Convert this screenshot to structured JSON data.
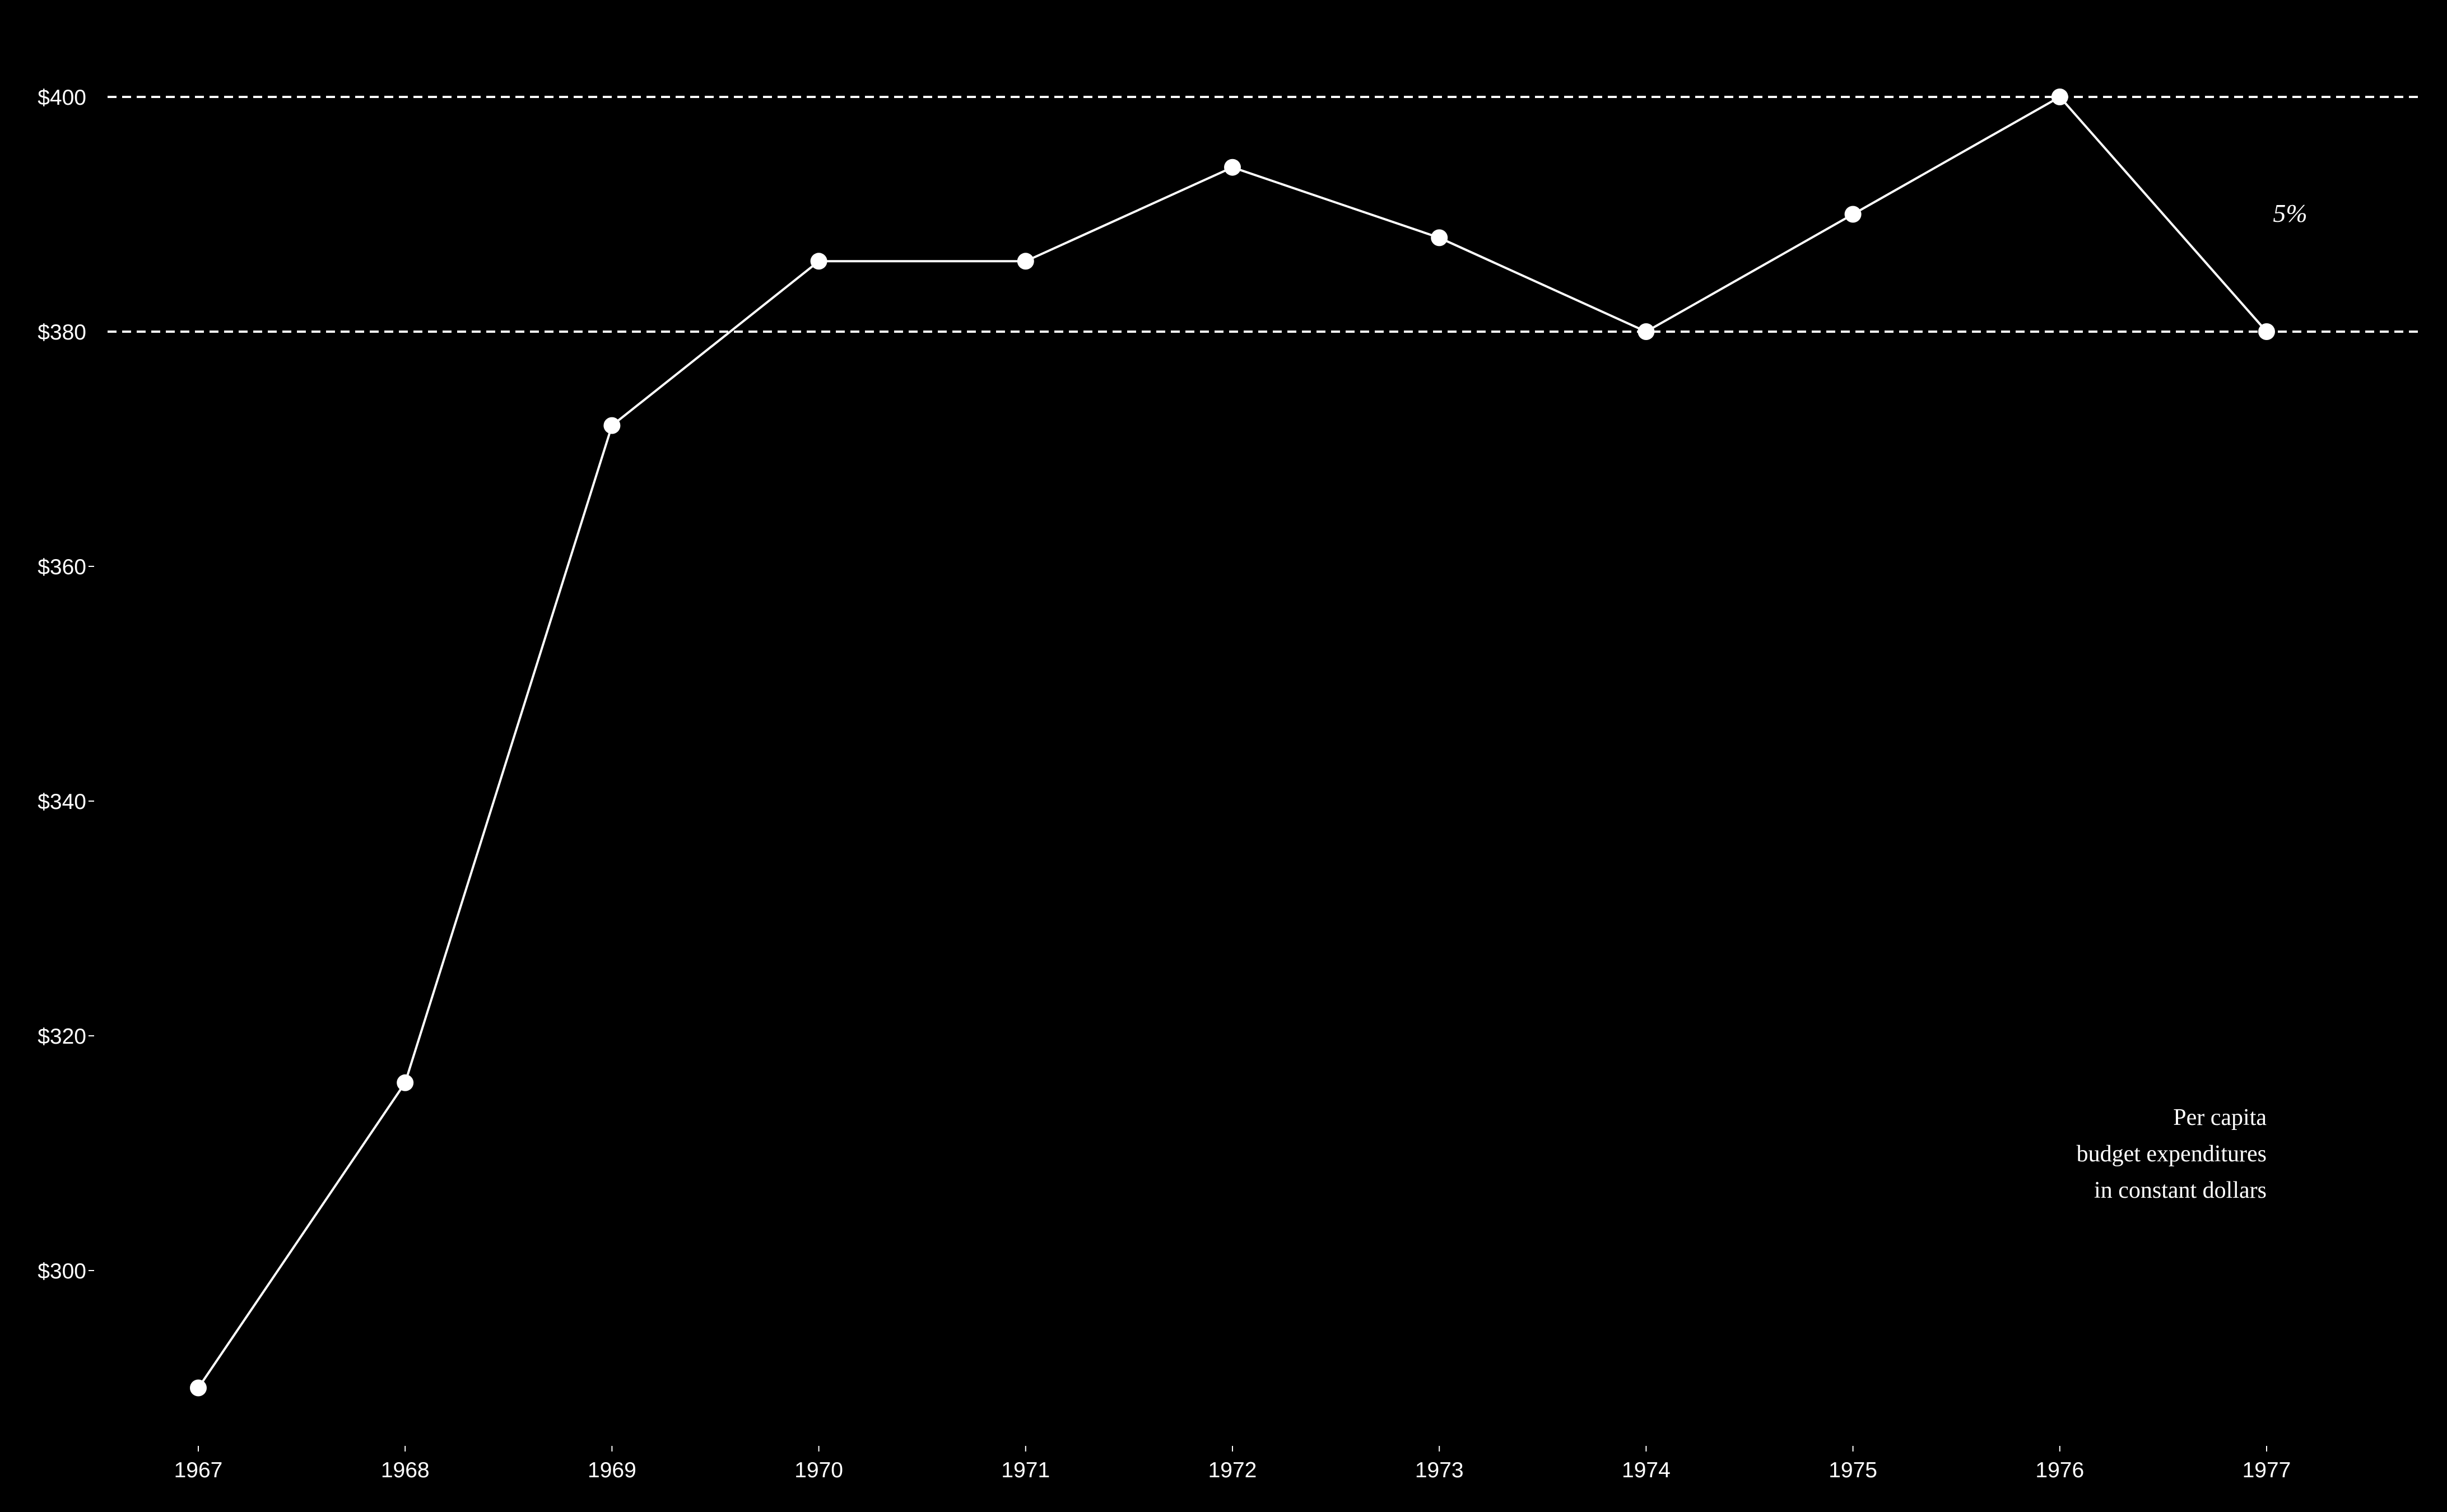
{
  "chart_data": {
    "type": "line",
    "x": [
      "1967",
      "1968",
      "1969",
      "1970",
      "1971",
      "1972",
      "1973",
      "1974",
      "1975",
      "1976",
      "1977"
    ],
    "series": [
      {
        "values": [
          290,
          316,
          372,
          386,
          386,
          394,
          388,
          380,
          390,
          400,
          380
        ]
      }
    ],
    "yticks": [
      300,
      320,
      340,
      360,
      380,
      400
    ],
    "ytick_labels": [
      "$300",
      "$320",
      "$340",
      "$360",
      "$380",
      "$400"
    ],
    "ylim": [
      288,
      408
    ],
    "reference_lines": [
      380,
      400
    ],
    "annotations": {
      "percent": "5%",
      "description": [
        "Per capita",
        "budget expenditures",
        "in constant dollars"
      ]
    },
    "title": "",
    "xlabel": "",
    "ylabel": "",
    "grid": false,
    "colors": {
      "background": "#000000",
      "line": "#ffffff",
      "marker": "#ffffff",
      "text": "#ffffff"
    }
  }
}
